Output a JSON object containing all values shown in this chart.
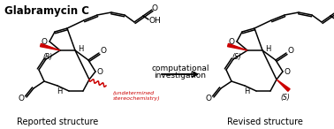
{
  "title": "Glabramycin C",
  "left_label": "Reported structure",
  "right_label": "Revised structure",
  "middle_text_line1": "computational",
  "middle_text_line2": "investigation",
  "bg_color": "#ffffff",
  "bond_color": "#000000",
  "red_color": "#cc0000"
}
